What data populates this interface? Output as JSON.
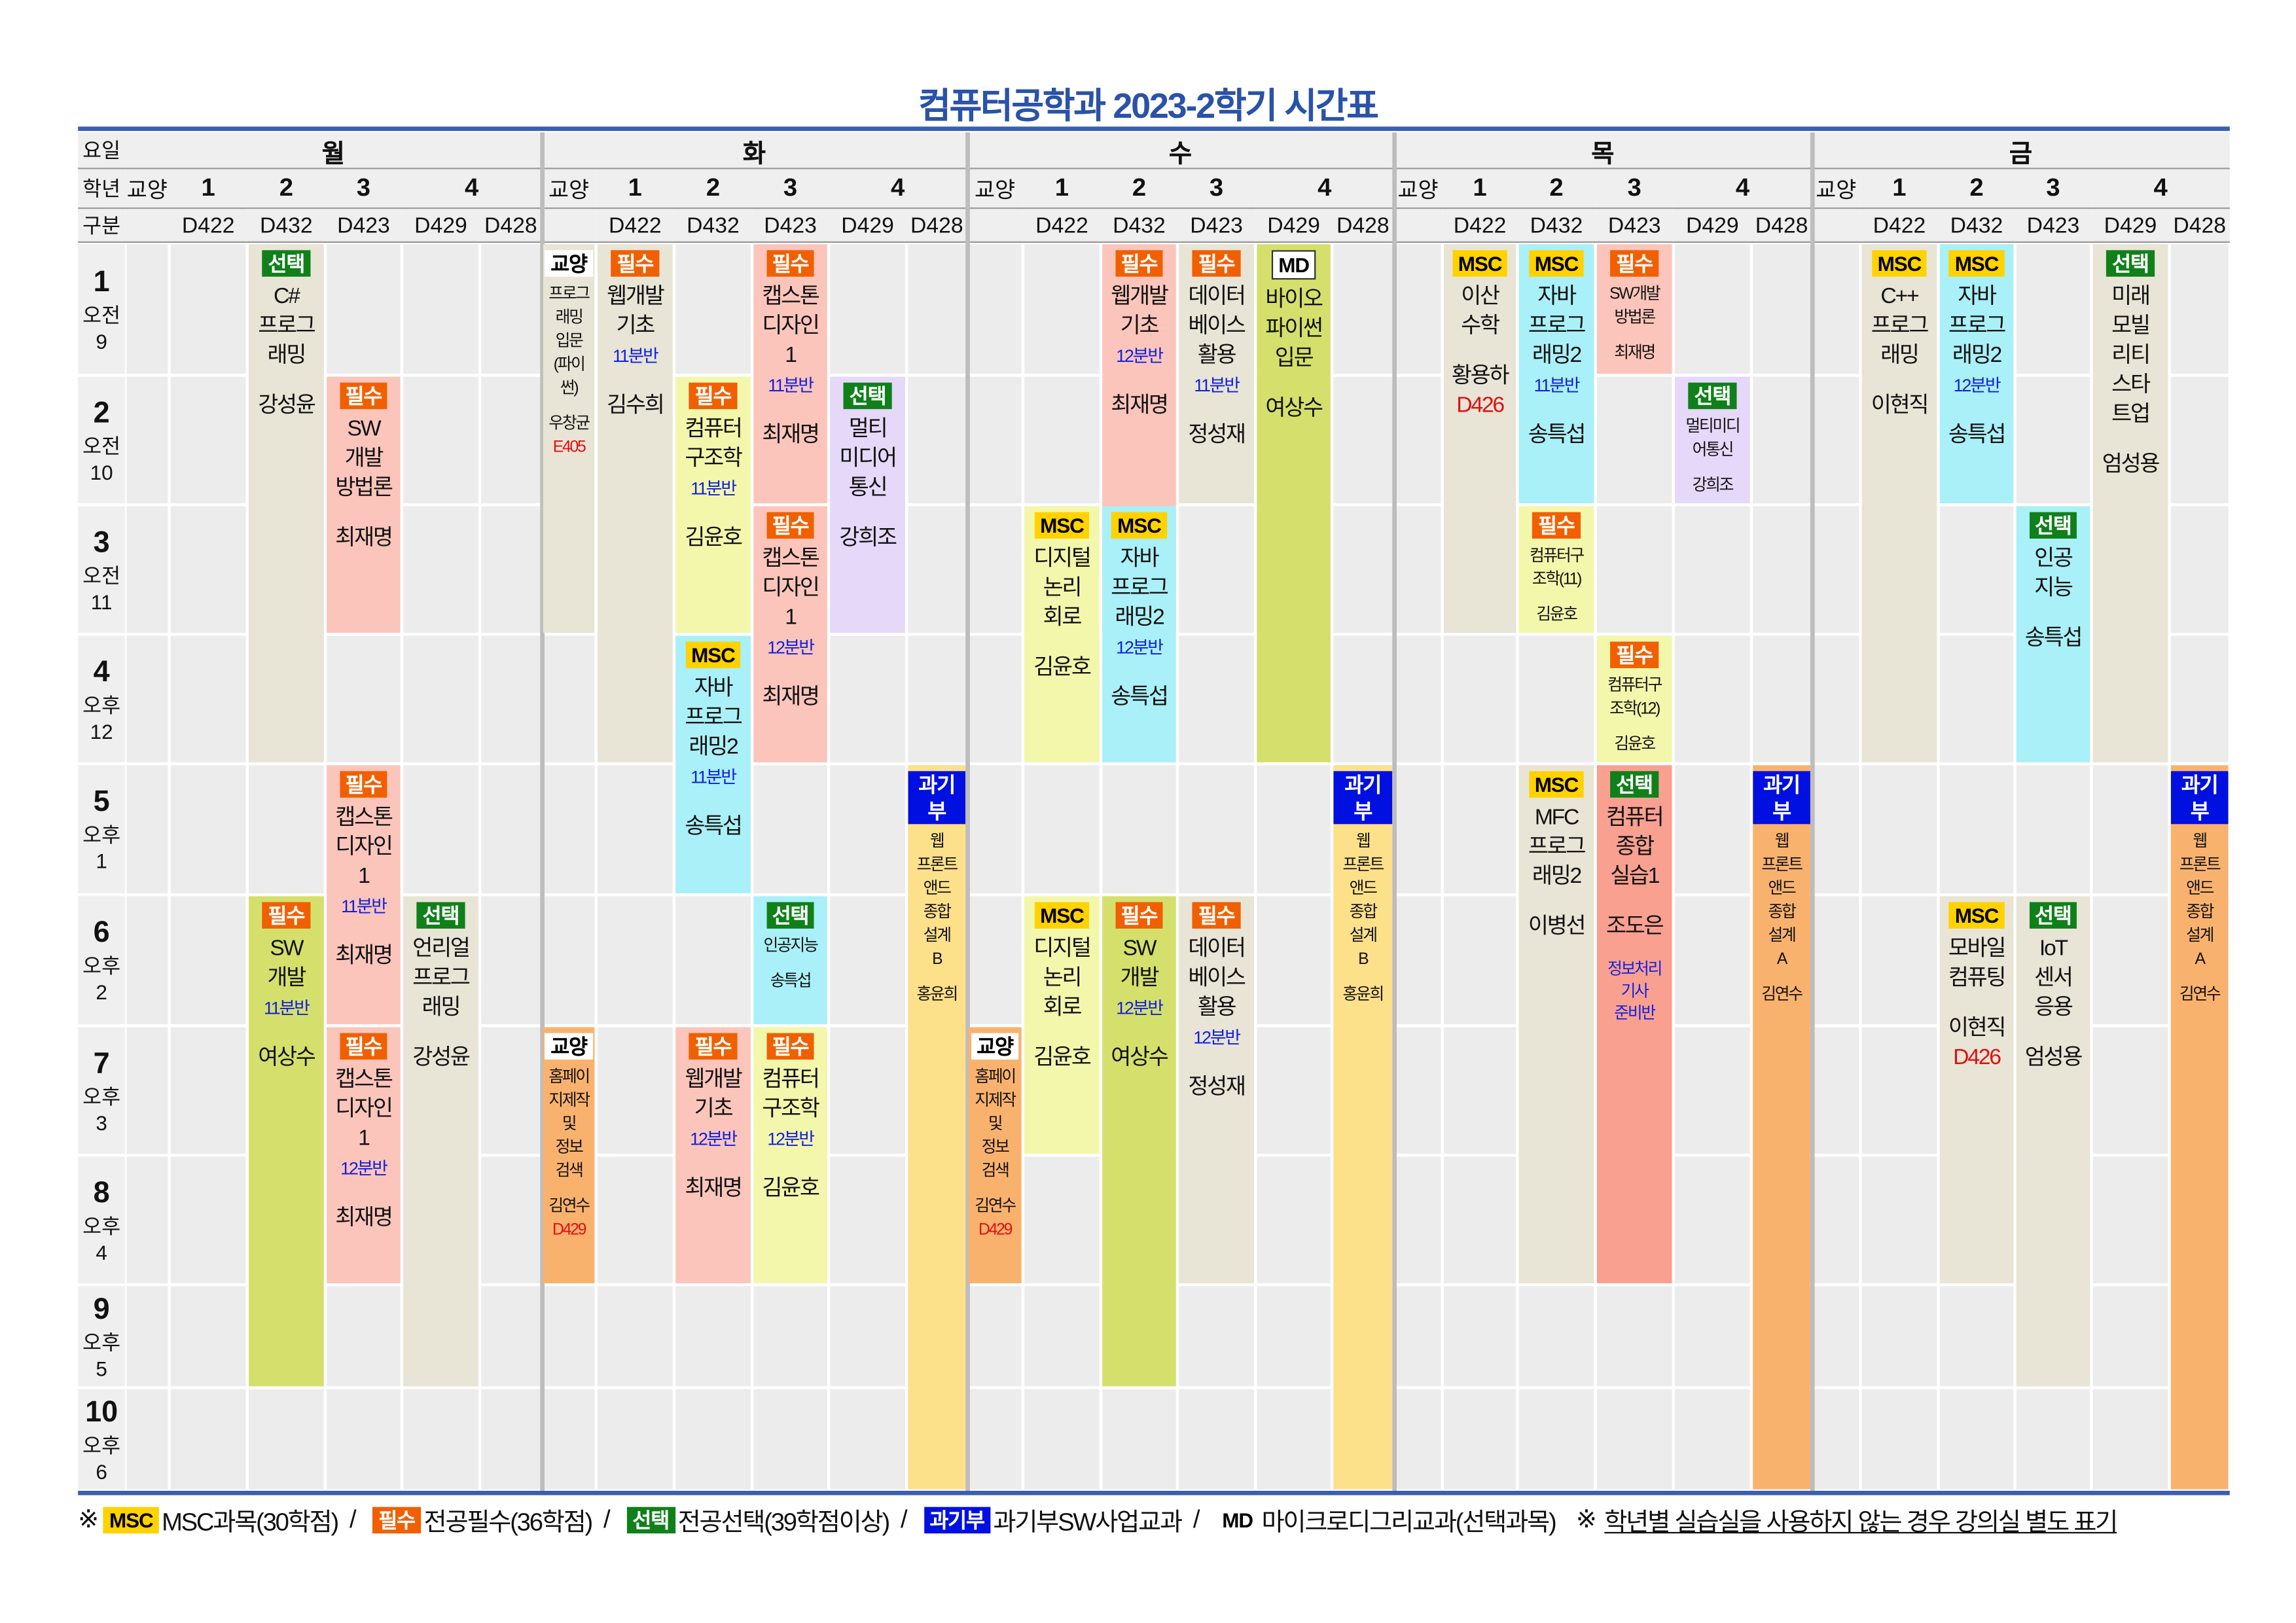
{
  "title": "컴퓨터공학과 2023-2학기 시간표",
  "labels": {
    "day": "요일",
    "grade": "학년",
    "room": "구분"
  },
  "days": [
    "월",
    "화",
    "수",
    "목",
    "금"
  ],
  "grade_headers": [
    "교양",
    "1",
    "2",
    "3",
    "4"
  ],
  "rooms": [
    "",
    "D422",
    "D432",
    "D423",
    "D429",
    "D428"
  ],
  "periods": [
    {
      "n": "1",
      "ap": "오전",
      "h": "9"
    },
    {
      "n": "2",
      "ap": "오전",
      "h": "10"
    },
    {
      "n": "3",
      "ap": "오전",
      "h": "11"
    },
    {
      "n": "4",
      "ap": "오후",
      "h": "12"
    },
    {
      "n": "5",
      "ap": "오후",
      "h": "1"
    },
    {
      "n": "6",
      "ap": "오후",
      "h": "2"
    },
    {
      "n": "7",
      "ap": "오후",
      "h": "3"
    },
    {
      "n": "8",
      "ap": "오후",
      "h": "4"
    },
    {
      "n": "9",
      "ap": "오후",
      "h": "5"
    },
    {
      "n": "10",
      "ap": "오후",
      "h": "6"
    }
  ],
  "tag_styles": {
    "MSC": {
      "bg": "#ffd200",
      "fg": "#000"
    },
    "필수": {
      "bg": "#f06000",
      "fg": "#fff"
    },
    "선택": {
      "bg": "#10801a",
      "fg": "#fff"
    },
    "과기부": {
      "bg": "#0010e0",
      "fg": "#fff"
    },
    "교양": {
      "bg": "#ffffff",
      "fg": "#000"
    },
    "MD": {
      "bg": "#ffffff",
      "fg": "#000"
    }
  },
  "colors": {
    "beige": "#e8e4d6",
    "pink": "#fcc5bb",
    "lightyellow": "#f3f7ab",
    "greenyellow": "#d5e06c",
    "cyan": "#aaf0f8",
    "lavender": "#e5d8f8",
    "paleorange": "#fde08a",
    "orange": "#f9b26e",
    "salmon": "#f9a090"
  },
  "courses": [
    {
      "day": 0,
      "col": 2,
      "row": 1,
      "span": 4,
      "tag": "선택",
      "title": [
        "C#",
        "프로그",
        "래밍"
      ],
      "prof": "강성윤",
      "color": "beige"
    },
    {
      "day": 0,
      "col": 3,
      "row": 2,
      "span": 2,
      "tag": "필수",
      "title": [
        "SW",
        "개발",
        "방법론"
      ],
      "prof": "최재명",
      "color": "pink"
    },
    {
      "day": 0,
      "col": 3,
      "row": 5,
      "span": 2,
      "tag": "필수",
      "title": [
        "캡스톤",
        "디자인",
        "1"
      ],
      "section": "11분반",
      "prof": "최재명",
      "color": "pink"
    },
    {
      "day": 0,
      "col": 3,
      "row": 7,
      "span": 2,
      "tag": "필수",
      "title": [
        "캡스톤",
        "디자인",
        "1"
      ],
      "section": "12분반",
      "prof": "최재명",
      "color": "pink"
    },
    {
      "day": 0,
      "col": 2,
      "row": 6,
      "span": 4,
      "tag": "필수",
      "title": [
        "SW",
        "개발"
      ],
      "section": "11분반",
      "prof": "여상수",
      "color": "greenyellow"
    },
    {
      "day": 0,
      "col": 4,
      "row": 6,
      "span": 4,
      "tag": "선택",
      "title": [
        "언리얼",
        "프로그",
        "래밍"
      ],
      "prof": "강성윤",
      "color": "beige"
    },
    {
      "day": 1,
      "col": 0,
      "row": 1,
      "span": 3,
      "tag": "교양",
      "title": [
        "프로그",
        "래밍",
        "입문",
        "(파이",
        "썬)"
      ],
      "prof": "우창균",
      "room": "E405",
      "color": "beige",
      "small": true
    },
    {
      "day": 1,
      "col": 1,
      "row": 1,
      "span": 4,
      "tag": "필수",
      "title": [
        "웹개발",
        "기초"
      ],
      "section": "11분반",
      "prof": "김수희",
      "color": "beige"
    },
    {
      "day": 1,
      "col": 2,
      "row": 2,
      "span": 2,
      "tag": "필수",
      "title": [
        "컴퓨터",
        "구조학"
      ],
      "section": "11분반",
      "prof": "김윤호",
      "color": "lightyellow"
    },
    {
      "day": 1,
      "col": 3,
      "row": 1,
      "span": 2,
      "tag": "필수",
      "title": [
        "캡스톤",
        "디자인",
        "1"
      ],
      "section": "11분반",
      "prof": "최재명",
      "color": "pink"
    },
    {
      "day": 1,
      "col": 3,
      "row": 3,
      "span": 2,
      "tag": "필수",
      "title": [
        "캡스톤",
        "디자인",
        "1"
      ],
      "section": "12분반",
      "prof": "최재명",
      "color": "pink"
    },
    {
      "day": 1,
      "col": 4,
      "row": 2,
      "span": 2,
      "tag": "선택",
      "title": [
        "멀티",
        "미디어",
        "통신"
      ],
      "prof": "강희조",
      "color": "lavender"
    },
    {
      "day": 1,
      "col": 2,
      "row": 4,
      "span": 2,
      "tag": "MSC",
      "title": [
        "자바",
        "프로그",
        "래밍2"
      ],
      "section": "11분반",
      "prof": "송특섭",
      "color": "cyan"
    },
    {
      "day": 1,
      "col": 5,
      "row": 5,
      "span": 6,
      "tag": "과기부",
      "title": [
        "웹",
        "프론트",
        "앤드",
        "종합",
        "설계",
        "B"
      ],
      "prof": "홍윤희",
      "color": "paleorange",
      "small": true
    },
    {
      "day": 1,
      "col": 3,
      "row": 6,
      "span": 1,
      "tag": "선택",
      "title": [
        "인공지능"
      ],
      "prof": "송특섭",
      "color": "cyan",
      "small": true
    },
    {
      "day": 1,
      "col": 0,
      "row": 7,
      "span": 2,
      "tag": "교양",
      "title": [
        "홈페이",
        "지제작",
        "및",
        "정보",
        "검색"
      ],
      "prof": "김연수",
      "room": "D429",
      "color": "orange",
      "small": true
    },
    {
      "day": 1,
      "col": 2,
      "row": 7,
      "span": 2,
      "tag": "필수",
      "title": [
        "웹개발",
        "기초"
      ],
      "section": "12분반",
      "prof": "최재명",
      "color": "pink"
    },
    {
      "day": 1,
      "col": 3,
      "row": 7,
      "span": 2,
      "tag": "필수",
      "title": [
        "컴퓨터",
        "구조학"
      ],
      "section": "12분반",
      "prof": "김윤호",
      "color": "lightyellow"
    },
    {
      "day": 2,
      "col": 2,
      "row": 1,
      "span": 3,
      "tag": "필수",
      "title": [
        "웹개발",
        "기초"
      ],
      "section": "12분반",
      "prof": "최재명",
      "color": "pink"
    },
    {
      "day": 2,
      "col": 3,
      "row": 1,
      "span": 2,
      "tag": "필수",
      "title": [
        "데이터",
        "베이스",
        "활용"
      ],
      "section": "11분반",
      "prof": "정성재",
      "color": "beige"
    },
    {
      "day": 2,
      "col": 4,
      "row": 1,
      "span": 4,
      "tag": "MD",
      "title": [
        "바이오",
        "파이썬",
        "입문"
      ],
      "prof": "여상수",
      "color": "greenyellow"
    },
    {
      "day": 2,
      "col": 1,
      "row": 3,
      "span": 2,
      "tag": "MSC",
      "title": [
        "디지털",
        "논리",
        "회로"
      ],
      "prof": "김윤호",
      "color": "lightyellow"
    },
    {
      "day": 2,
      "col": 2,
      "row": 3,
      "span": 2,
      "tag": "MSC",
      "title": [
        "자바",
        "프로그",
        "래밍2"
      ],
      "section": "12분반",
      "prof": "송특섭",
      "color": "cyan"
    },
    {
      "day": 2,
      "col": 5,
      "row": 5,
      "span": 6,
      "tag": "과기부",
      "title": [
        "웹",
        "프론트",
        "앤드",
        "종합",
        "설계",
        "B"
      ],
      "prof": "홍윤희",
      "color": "paleorange",
      "small": true
    },
    {
      "day": 2,
      "col": 1,
      "row": 6,
      "span": 2,
      "tag": "MSC",
      "title": [
        "디지털",
        "논리",
        "회로"
      ],
      "prof": "김윤호",
      "color": "lightyellow"
    },
    {
      "day": 2,
      "col": 2,
      "row": 6,
      "span": 4,
      "tag": "필수",
      "title": [
        "SW",
        "개발"
      ],
      "section": "12분반",
      "prof": "여상수",
      "color": "greenyellow"
    },
    {
      "day": 2,
      "col": 3,
      "row": 6,
      "span": 3,
      "tag": "필수",
      "title": [
        "데이터",
        "베이스",
        "활용"
      ],
      "section": "12분반",
      "prof": "정성재",
      "color": "beige"
    },
    {
      "day": 2,
      "col": 0,
      "row": 7,
      "span": 2,
      "tag": "교양",
      "title": [
        "홈페이",
        "지제작",
        "및",
        "정보",
        "검색"
      ],
      "prof": "김연수",
      "room": "D429",
      "color": "orange",
      "small": true
    },
    {
      "day": 3,
      "col": 1,
      "row": 1,
      "span": 3,
      "tag": "MSC",
      "title": [
        "이산",
        "수학"
      ],
      "prof": "황용하",
      "room": "D426",
      "color": "beige"
    },
    {
      "day": 3,
      "col": 2,
      "row": 1,
      "span": 2,
      "tag": "MSC",
      "title": [
        "자바",
        "프로그",
        "래밍2"
      ],
      "section": "11분반",
      "prof": "송특섭",
      "color": "cyan"
    },
    {
      "day": 3,
      "col": 3,
      "row": 1,
      "span": 1,
      "tag": "필수",
      "title": [
        "SW개발",
        "방법론"
      ],
      "prof": "최재명",
      "color": "pink",
      "small": true
    },
    {
      "day": 3,
      "col": 4,
      "row": 2,
      "span": 1,
      "tag": "선택",
      "title": [
        "멀티미디",
        "어통신"
      ],
      "prof": "강희조",
      "color": "lavender",
      "small": true
    },
    {
      "day": 3,
      "col": 2,
      "row": 3,
      "span": 1,
      "tag": "필수",
      "title": [
        "컴퓨터구",
        "조학(11)"
      ],
      "prof": "김윤호",
      "color": "lightyellow",
      "small": true
    },
    {
      "day": 3,
      "col": 3,
      "row": 4,
      "span": 1,
      "tag": "필수",
      "title": [
        "컴퓨터구",
        "조학(12)"
      ],
      "prof": "김윤호",
      "color": "lightyellow",
      "small": true
    },
    {
      "day": 3,
      "col": 2,
      "row": 5,
      "span": 4,
      "tag": "MSC",
      "title": [
        "MFC",
        "프로그",
        "래밍2"
      ],
      "prof": "이병선",
      "color": "beige"
    },
    {
      "day": 3,
      "col": 3,
      "row": 5,
      "span": 4,
      "tag": "선택",
      "title": [
        "컴퓨터",
        "종합",
        "실습1"
      ],
      "prof": "조도은",
      "note": [
        "정보처리",
        "기사",
        "준비반"
      ],
      "color": "salmon"
    },
    {
      "day": 3,
      "col": 5,
      "row": 5,
      "span": 6,
      "tag": "과기부",
      "title": [
        "웹",
        "프론트",
        "앤드",
        "종합",
        "설계",
        "A"
      ],
      "prof": "김연수",
      "color": "orange",
      "small": true
    },
    {
      "day": 4,
      "col": 1,
      "row": 1,
      "span": 4,
      "tag": "MSC",
      "title": [
        "C++",
        "프로그",
        "래밍"
      ],
      "prof": "이현직",
      "color": "beige"
    },
    {
      "day": 4,
      "col": 2,
      "row": 1,
      "span": 2,
      "tag": "MSC",
      "title": [
        "자바",
        "프로그",
        "래밍2"
      ],
      "section": "12분반",
      "prof": "송특섭",
      "color": "cyan"
    },
    {
      "day": 4,
      "col": 4,
      "row": 1,
      "span": 4,
      "tag": "선택",
      "title": [
        "미래",
        "모빌",
        "리티",
        "스타",
        "트업"
      ],
      "prof": "엄성용",
      "color": "beige"
    },
    {
      "day": 4,
      "col": 3,
      "row": 3,
      "span": 2,
      "tag": "선택",
      "title": [
        "인공",
        "지능"
      ],
      "prof": "송특섭",
      "color": "cyan"
    },
    {
      "day": 4,
      "col": 2,
      "row": 6,
      "span": 3,
      "tag": "MSC",
      "title": [
        "모바일",
        "컴퓨팅"
      ],
      "prof": "이현직",
      "room": "D426",
      "color": "beige"
    },
    {
      "day": 4,
      "col": 3,
      "row": 6,
      "span": 4,
      "tag": "선택",
      "title": [
        "IoT",
        "센서",
        "응용"
      ],
      "prof": "엄성용",
      "color": "beige"
    },
    {
      "day": 4,
      "col": 5,
      "row": 5,
      "span": 6,
      "tag": "과기부",
      "title": [
        "웹",
        "프론트",
        "앤드",
        "종합",
        "설계",
        "A"
      ],
      "prof": "김연수",
      "color": "orange",
      "small": true
    }
  ],
  "legend": {
    "mark": "※",
    "items": [
      {
        "tag": "MSC",
        "text": "MSC과목(30학점)"
      },
      {
        "tag": "필수",
        "text": "전공필수(36학점)"
      },
      {
        "tag": "선택",
        "text": "전공선택(39학점이상)"
      },
      {
        "tag": "과기부",
        "text": "과기부SW사업교과"
      },
      {
        "tag": "MD",
        "text": "마이크로디그리교과(선택과목)"
      }
    ],
    "separator": "/",
    "note_mark": "※",
    "note": "학년별 실습실을 사용하지 않는 경우 강의실 별도 표기"
  }
}
